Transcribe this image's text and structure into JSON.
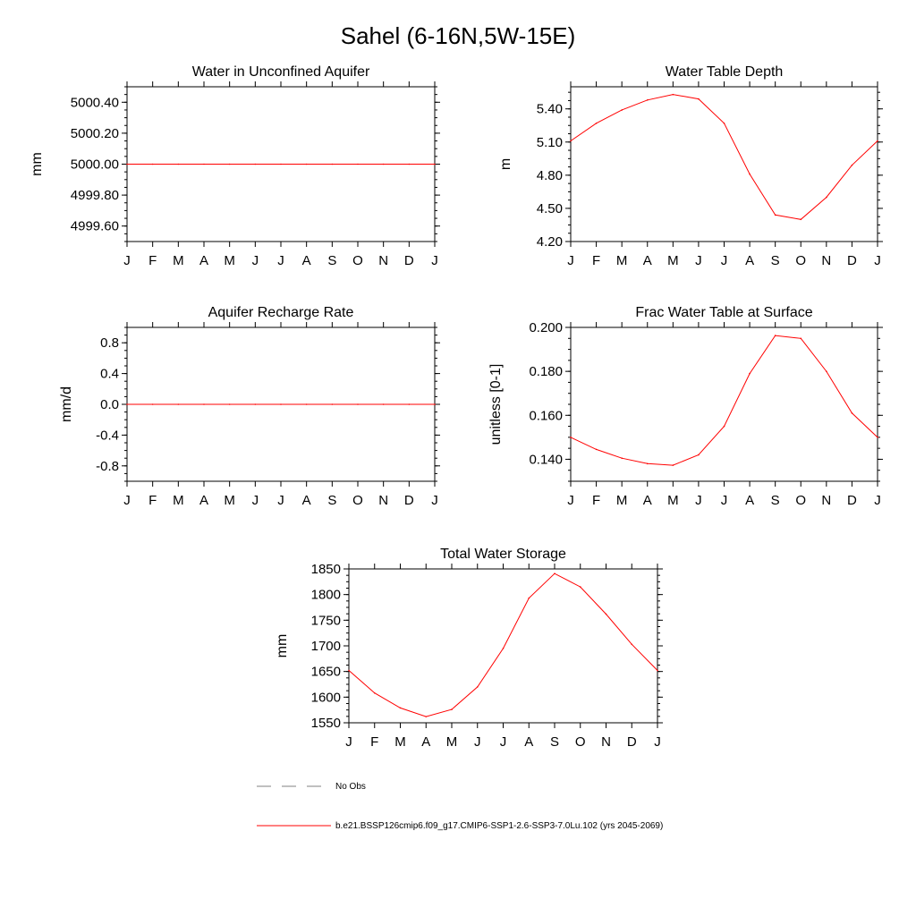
{
  "title": "Sahel (6-16N,5W-15E)",
  "months": [
    "J",
    "F",
    "M",
    "A",
    "M",
    "J",
    "J",
    "A",
    "S",
    "O",
    "N",
    "D",
    "J"
  ],
  "colors": {
    "series": "#ff0000",
    "obs": "#808080",
    "axis": "#000000"
  },
  "legend": {
    "obs_label": "No Obs",
    "model_label": "b.e21.BSSP126cmip6.f09_g17.CMIP6-SSP1-2.6-SSP3-7.0Lu.102 (yrs 2045-2069)"
  },
  "chart_data": [
    {
      "type": "line",
      "title": "Water in Unconfined Aquifer",
      "ylabel": "mm",
      "ylim": [
        4999.5,
        5000.5
      ],
      "yticks": [
        4999.6,
        4999.8,
        5000.0,
        5000.2,
        5000.4
      ],
      "ytick_labels": [
        "4999.60",
        "4999.80",
        "5000.00",
        "5000.20",
        "5000.40"
      ],
      "categories": [
        "J",
        "F",
        "M",
        "A",
        "M",
        "J",
        "J",
        "A",
        "S",
        "O",
        "N",
        "D",
        "J"
      ],
      "values": [
        5000.0,
        5000.0,
        5000.0,
        5000.0,
        5000.0,
        5000.0,
        5000.0,
        5000.0,
        5000.0,
        5000.0,
        5000.0,
        5000.0,
        5000.0
      ]
    },
    {
      "type": "line",
      "title": "Water Table Depth",
      "ylabel": "m",
      "ylim": [
        4.2,
        5.6
      ],
      "yticks": [
        4.2,
        4.5,
        4.8,
        5.1,
        5.4
      ],
      "ytick_labels": [
        "4.20",
        "4.50",
        "4.80",
        "5.10",
        "5.40"
      ],
      "categories": [
        "J",
        "F",
        "M",
        "A",
        "M",
        "J",
        "J",
        "A",
        "S",
        "O",
        "N",
        "D",
        "J"
      ],
      "values": [
        5.11,
        5.27,
        5.39,
        5.48,
        5.53,
        5.49,
        5.27,
        4.81,
        4.44,
        4.4,
        4.6,
        4.89,
        5.11
      ]
    },
    {
      "type": "line",
      "title": "Aquifer Recharge Rate",
      "ylabel": "mm/d",
      "ylim": [
        -1.0,
        1.0
      ],
      "yticks": [
        -0.8,
        -0.4,
        0.0,
        0.4,
        0.8
      ],
      "ytick_labels": [
        "-0.8",
        "-0.4",
        "0.0",
        "0.4",
        "0.8"
      ],
      "categories": [
        "J",
        "F",
        "M",
        "A",
        "M",
        "J",
        "J",
        "A",
        "S",
        "O",
        "N",
        "D",
        "J"
      ],
      "values": [
        0,
        0,
        0,
        0,
        0,
        0,
        0,
        0,
        0,
        0,
        0,
        0,
        0
      ]
    },
    {
      "type": "line",
      "title": "Frac Water Table at Surface",
      "ylabel": "unitless [0-1]",
      "ylim": [
        0.13,
        0.2
      ],
      "yticks": [
        0.14,
        0.16,
        0.18,
        0.2
      ],
      "ytick_labels": [
        "0.140",
        "0.160",
        "0.180",
        "0.200"
      ],
      "categories": [
        "J",
        "F",
        "M",
        "A",
        "M",
        "J",
        "J",
        "A",
        "S",
        "O",
        "N",
        "D",
        "J"
      ],
      "values": [
        0.15,
        0.1445,
        0.1405,
        0.138,
        0.1373,
        0.142,
        0.155,
        0.179,
        0.1963,
        0.195,
        0.18,
        0.161,
        0.15
      ]
    },
    {
      "type": "line",
      "title": "Total Water Storage",
      "ylabel": "mm",
      "ylim": [
        1550,
        1850
      ],
      "yticks": [
        1550,
        1600,
        1650,
        1700,
        1750,
        1800,
        1850
      ],
      "ytick_labels": [
        "1550",
        "1600",
        "1650",
        "1700",
        "1750",
        "1800",
        "1850"
      ],
      "categories": [
        "J",
        "F",
        "M",
        "A",
        "M",
        "J",
        "J",
        "A",
        "S",
        "O",
        "N",
        "D",
        "J"
      ],
      "values": [
        1652,
        1608,
        1579,
        1562,
        1576,
        1620,
        1695,
        1793,
        1841,
        1815,
        1762,
        1703,
        1652
      ]
    }
  ]
}
